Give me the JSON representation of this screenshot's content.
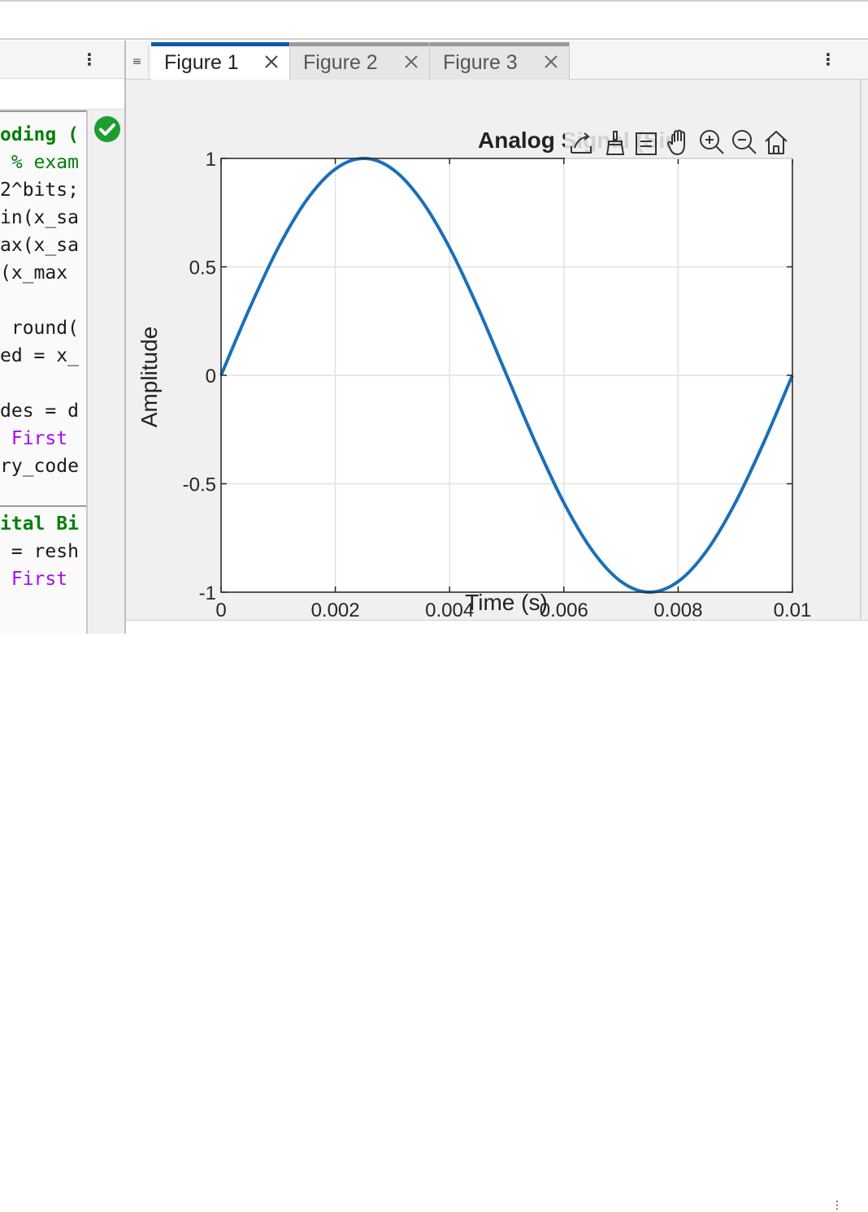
{
  "editor": {
    "menu_glyph": "⋮",
    "code_lines": [
      {
        "text": "oding (",
        "style": "c-green"
      },
      {
        "text": " % exam",
        "style": "c-cmt"
      },
      {
        "text": "2^bits;",
        "style": ""
      },
      {
        "text": "in(x_sa",
        "style": ""
      },
      {
        "text": "ax(x_sa",
        "style": ""
      },
      {
        "text": "(x_max ",
        "style": ""
      },
      {
        "text": "",
        "style": ""
      },
      {
        "text": " round(",
        "style": ""
      },
      {
        "text": "ed = x_",
        "style": ""
      },
      {
        "text": "",
        "style": ""
      },
      {
        "text": "des = d",
        "style": ""
      },
      {
        "text": " First ",
        "style": "c-purple"
      },
      {
        "text": "ry_code",
        "style": ""
      },
      {
        "text": "",
        "style": ""
      },
      {
        "text": "ital Bi",
        "style": "c-green"
      },
      {
        "text": " = resh",
        "style": ""
      },
      {
        "text": " First ",
        "style": "c-purple"
      }
    ],
    "status": "check-circle-icon"
  },
  "figure_window": {
    "grip_glyph": "≡",
    "menu_glyph": "⋮",
    "tabs": [
      {
        "label": "Figure 1",
        "active": true
      },
      {
        "label": "Figure 2",
        "active": false
      },
      {
        "label": "Figure 3",
        "active": false
      }
    ],
    "toolbar": [
      "export-icon",
      "brush-icon",
      "datatip-icon",
      "pan-hand-icon",
      "zoom-in-icon",
      "zoom-out-icon",
      "home-icon"
    ]
  },
  "colors": {
    "line": "#1a6fb8",
    "active_tab": "#0d5aa7",
    "code_keyword": "#028009",
    "code_string": "#a709f5"
  },
  "chart_data": {
    "type": "line",
    "title": "Analog Signal (Sir",
    "xlabel": "Time (s)",
    "ylabel": "Amplitude",
    "xlim": [
      0,
      0.01
    ],
    "ylim": [
      -1,
      1
    ],
    "xticks": [
      0,
      0.002,
      0.004,
      0.006,
      0.008,
      0.01
    ],
    "xtick_labels": [
      "0",
      "0.002",
      "0.004",
      "0.006",
      "0.008",
      "0.01"
    ],
    "yticks": [
      -1,
      -0.5,
      0,
      0.5,
      1
    ],
    "ytick_labels": [
      "-1",
      "-0.5",
      "0",
      "0.5",
      "1"
    ],
    "grid": true,
    "series": [
      {
        "x": [
          0,
          0.0005,
          0.001,
          0.0015,
          0.002,
          0.0025,
          0.003,
          0.0035,
          0.004,
          0.0045,
          0.005,
          0.0055,
          0.006,
          0.0065,
          0.007,
          0.0075,
          0.008,
          0.0085,
          0.009,
          0.0095,
          0.01
        ],
        "y": [
          0,
          0.309,
          0.588,
          0.809,
          0.951,
          1.0,
          0.951,
          0.809,
          0.588,
          0.309,
          0,
          -0.309,
          -0.588,
          -0.809,
          -0.951,
          -1.0,
          -0.951,
          -0.809,
          -0.588,
          -0.309,
          0
        ]
      }
    ]
  }
}
